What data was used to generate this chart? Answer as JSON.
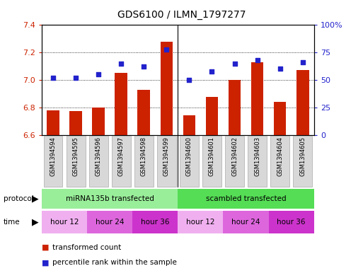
{
  "title": "GDS6100 / ILMN_1797277",
  "samples": [
    "GSM1394594",
    "GSM1394595",
    "GSM1394596",
    "GSM1394597",
    "GSM1394598",
    "GSM1394599",
    "GSM1394600",
    "GSM1394601",
    "GSM1394602",
    "GSM1394603",
    "GSM1394604",
    "GSM1394605"
  ],
  "bar_values": [
    6.78,
    6.775,
    6.8,
    7.05,
    6.93,
    7.28,
    6.74,
    6.875,
    7.0,
    7.13,
    6.84,
    7.07
  ],
  "dot_values_pct": [
    52,
    52,
    55,
    65,
    62,
    78,
    50,
    58,
    65,
    68,
    60,
    66
  ],
  "bar_color": "#cc2200",
  "dot_color": "#2222cc",
  "ylim_left": [
    6.6,
    7.4
  ],
  "ylim_right": [
    0,
    100
  ],
  "yticks_left": [
    6.6,
    6.8,
    7.0,
    7.2,
    7.4
  ],
  "yticks_right": [
    0,
    25,
    50,
    75,
    100
  ],
  "ytick_labels_right": [
    "0",
    "25",
    "50",
    "75",
    "100%"
  ],
  "protocol_groups": [
    {
      "label": "miRNA135b transfected",
      "start": 0,
      "end": 6,
      "color": "#99ee99"
    },
    {
      "label": "scambled transfected",
      "start": 6,
      "end": 12,
      "color": "#55dd55"
    }
  ],
  "time_colors": {
    "hour 12": "#f0b0f0",
    "hour 24": "#dd66dd",
    "hour 36": "#cc33cc"
  },
  "time_groups": [
    {
      "label": "hour 12",
      "start": 0,
      "end": 2
    },
    {
      "label": "hour 24",
      "start": 2,
      "end": 4
    },
    {
      "label": "hour 36",
      "start": 4,
      "end": 6
    },
    {
      "label": "hour 12",
      "start": 6,
      "end": 8
    },
    {
      "label": "hour 24",
      "start": 8,
      "end": 10
    },
    {
      "label": "hour 36",
      "start": 10,
      "end": 12
    }
  ],
  "legend_items": [
    {
      "label": "transformed count",
      "color": "#cc2200"
    },
    {
      "label": "percentile rank within the sample",
      "color": "#2222cc"
    }
  ],
  "fig_bg": "#ffffff",
  "sample_box_color": "#d8d8d8",
  "sample_box_edge": "#aaaaaa"
}
